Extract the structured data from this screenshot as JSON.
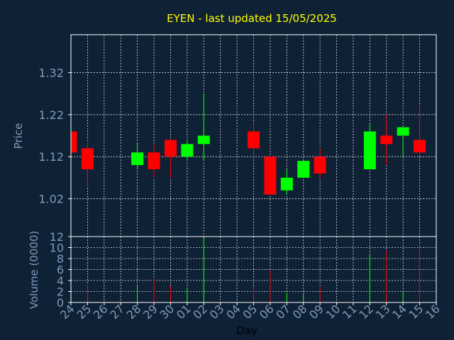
{
  "chart_data": {
    "type": "candlestick",
    "title": "EYEN - last updated 15/05/2025",
    "xlabel": "Day",
    "price_panel": {
      "ylabel": "Price",
      "ylim": [
        0.93,
        1.41
      ],
      "ytick_values": [
        1.02,
        1.12,
        1.22,
        1.32
      ],
      "ytick_labels": [
        "1.02",
        "1.12",
        "1.22",
        "1.32"
      ],
      "grid": true
    },
    "volume_panel": {
      "ylabel": "Volume (0000)",
      "ylim": [
        0,
        12
      ],
      "ytick_values": [
        0,
        2,
        4,
        6,
        8,
        10,
        12
      ],
      "ytick_labels": [
        "0",
        "2",
        "4",
        "6",
        "8",
        "10",
        "12"
      ],
      "grid": true
    },
    "x_labels": [
      "24",
      "25",
      "26",
      "27",
      "28",
      "29",
      "30",
      "01",
      "02",
      "03",
      "04",
      "05",
      "06",
      "07",
      "08",
      "09",
      "10",
      "11",
      "12",
      "13",
      "14",
      "15",
      "16"
    ],
    "colors": {
      "background": "#0f2135",
      "up": "#00ff00",
      "down": "#ff0000",
      "grid": "#ffffff",
      "title": "#ffff00",
      "tick": "#7f9ab8"
    },
    "candles": [
      {
        "x": 0,
        "open": 1.18,
        "high": 1.18,
        "low": 1.13,
        "close": 1.13,
        "volume": 0
      },
      {
        "x": 1,
        "open": 1.14,
        "high": 1.16,
        "low": 1.05,
        "close": 1.09,
        "volume": 3.2
      },
      {
        "x": 4,
        "open": 1.1,
        "high": 1.15,
        "low": 1.09,
        "close": 1.13,
        "volume": 3.0
      },
      {
        "x": 5,
        "open": 1.13,
        "high": 1.15,
        "low": 1.07,
        "close": 1.09,
        "volume": 4.3
      },
      {
        "x": 6,
        "open": 1.16,
        "high": 1.16,
        "low": 1.07,
        "close": 1.12,
        "volume": 3.0
      },
      {
        "x": 7,
        "open": 1.12,
        "high": 1.16,
        "low": 1.11,
        "close": 1.15,
        "volume": 2.5
      },
      {
        "x": 8,
        "open": 1.15,
        "high": 1.27,
        "low": 1.11,
        "close": 1.17,
        "volume": 11.8
      },
      {
        "x": 11,
        "open": 1.18,
        "high": 1.2,
        "low": 1.12,
        "close": 1.14,
        "volume": 3.0
      },
      {
        "x": 12,
        "open": 1.12,
        "high": 1.12,
        "low": 1.03,
        "close": 1.03,
        "volume": 5.8
      },
      {
        "x": 13,
        "open": 1.04,
        "high": 1.09,
        "low": 1.03,
        "close": 1.07,
        "volume": 1.8
      },
      {
        "x": 14,
        "open": 1.07,
        "high": 1.11,
        "low": 1.07,
        "close": 1.11,
        "volume": 1.8
      },
      {
        "x": 15,
        "open": 1.12,
        "high": 1.14,
        "low": 1.07,
        "close": 1.08,
        "volume": 2.8
      },
      {
        "x": 18,
        "open": 1.09,
        "high": 1.2,
        "low": 1.09,
        "close": 1.18,
        "volume": 8.8
      },
      {
        "x": 19,
        "open": 1.17,
        "high": 1.22,
        "low": 1.1,
        "close": 1.15,
        "volume": 9.5
      },
      {
        "x": 20,
        "open": 1.17,
        "high": 1.19,
        "low": 1.12,
        "close": 1.19,
        "volume": 2.2
      },
      {
        "x": 21,
        "open": 1.16,
        "high": 1.24,
        "low": 1.12,
        "close": 1.13,
        "volume": 10.3
      }
    ]
  }
}
